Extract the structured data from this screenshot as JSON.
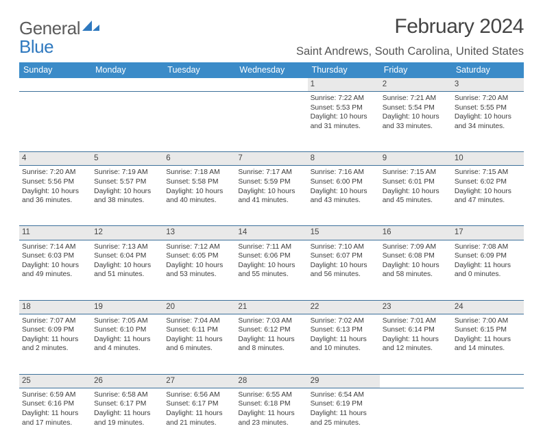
{
  "brand": {
    "word1": "General",
    "word2": "Blue"
  },
  "title": "February 2024",
  "location": "Saint Andrews, South Carolina, United States",
  "colors": {
    "header_bg": "#3b8bc8",
    "row_border": "#3b6f99",
    "daynum_bg": "#e9e9e9",
    "brand_blue": "#2f79bf",
    "text": "#3a3a3a"
  },
  "day_headers": [
    "Sunday",
    "Monday",
    "Tuesday",
    "Wednesday",
    "Thursday",
    "Friday",
    "Saturday"
  ],
  "weeks": [
    {
      "nums": [
        "",
        "",
        "",
        "",
        "1",
        "2",
        "3"
      ],
      "cells": [
        "",
        "",
        "",
        "",
        "Sunrise: 7:22 AM\nSunset: 5:53 PM\nDaylight: 10 hours and 31 minutes.",
        "Sunrise: 7:21 AM\nSunset: 5:54 PM\nDaylight: 10 hours and 33 minutes.",
        "Sunrise: 7:20 AM\nSunset: 5:55 PM\nDaylight: 10 hours and 34 minutes."
      ]
    },
    {
      "nums": [
        "4",
        "5",
        "6",
        "7",
        "8",
        "9",
        "10"
      ],
      "cells": [
        "Sunrise: 7:20 AM\nSunset: 5:56 PM\nDaylight: 10 hours and 36 minutes.",
        "Sunrise: 7:19 AM\nSunset: 5:57 PM\nDaylight: 10 hours and 38 minutes.",
        "Sunrise: 7:18 AM\nSunset: 5:58 PM\nDaylight: 10 hours and 40 minutes.",
        "Sunrise: 7:17 AM\nSunset: 5:59 PM\nDaylight: 10 hours and 41 minutes.",
        "Sunrise: 7:16 AM\nSunset: 6:00 PM\nDaylight: 10 hours and 43 minutes.",
        "Sunrise: 7:15 AM\nSunset: 6:01 PM\nDaylight: 10 hours and 45 minutes.",
        "Sunrise: 7:15 AM\nSunset: 6:02 PM\nDaylight: 10 hours and 47 minutes."
      ]
    },
    {
      "nums": [
        "11",
        "12",
        "13",
        "14",
        "15",
        "16",
        "17"
      ],
      "cells": [
        "Sunrise: 7:14 AM\nSunset: 6:03 PM\nDaylight: 10 hours and 49 minutes.",
        "Sunrise: 7:13 AM\nSunset: 6:04 PM\nDaylight: 10 hours and 51 minutes.",
        "Sunrise: 7:12 AM\nSunset: 6:05 PM\nDaylight: 10 hours and 53 minutes.",
        "Sunrise: 7:11 AM\nSunset: 6:06 PM\nDaylight: 10 hours and 55 minutes.",
        "Sunrise: 7:10 AM\nSunset: 6:07 PM\nDaylight: 10 hours and 56 minutes.",
        "Sunrise: 7:09 AM\nSunset: 6:08 PM\nDaylight: 10 hours and 58 minutes.",
        "Sunrise: 7:08 AM\nSunset: 6:09 PM\nDaylight: 11 hours and 0 minutes."
      ]
    },
    {
      "nums": [
        "18",
        "19",
        "20",
        "21",
        "22",
        "23",
        "24"
      ],
      "cells": [
        "Sunrise: 7:07 AM\nSunset: 6:09 PM\nDaylight: 11 hours and 2 minutes.",
        "Sunrise: 7:05 AM\nSunset: 6:10 PM\nDaylight: 11 hours and 4 minutes.",
        "Sunrise: 7:04 AM\nSunset: 6:11 PM\nDaylight: 11 hours and 6 minutes.",
        "Sunrise: 7:03 AM\nSunset: 6:12 PM\nDaylight: 11 hours and 8 minutes.",
        "Sunrise: 7:02 AM\nSunset: 6:13 PM\nDaylight: 11 hours and 10 minutes.",
        "Sunrise: 7:01 AM\nSunset: 6:14 PM\nDaylight: 11 hours and 12 minutes.",
        "Sunrise: 7:00 AM\nSunset: 6:15 PM\nDaylight: 11 hours and 14 minutes."
      ]
    },
    {
      "nums": [
        "25",
        "26",
        "27",
        "28",
        "29",
        "",
        ""
      ],
      "cells": [
        "Sunrise: 6:59 AM\nSunset: 6:16 PM\nDaylight: 11 hours and 17 minutes.",
        "Sunrise: 6:58 AM\nSunset: 6:17 PM\nDaylight: 11 hours and 19 minutes.",
        "Sunrise: 6:56 AM\nSunset: 6:17 PM\nDaylight: 11 hours and 21 minutes.",
        "Sunrise: 6:55 AM\nSunset: 6:18 PM\nDaylight: 11 hours and 23 minutes.",
        "Sunrise: 6:54 AM\nSunset: 6:19 PM\nDaylight: 11 hours and 25 minutes.",
        "",
        ""
      ]
    }
  ]
}
